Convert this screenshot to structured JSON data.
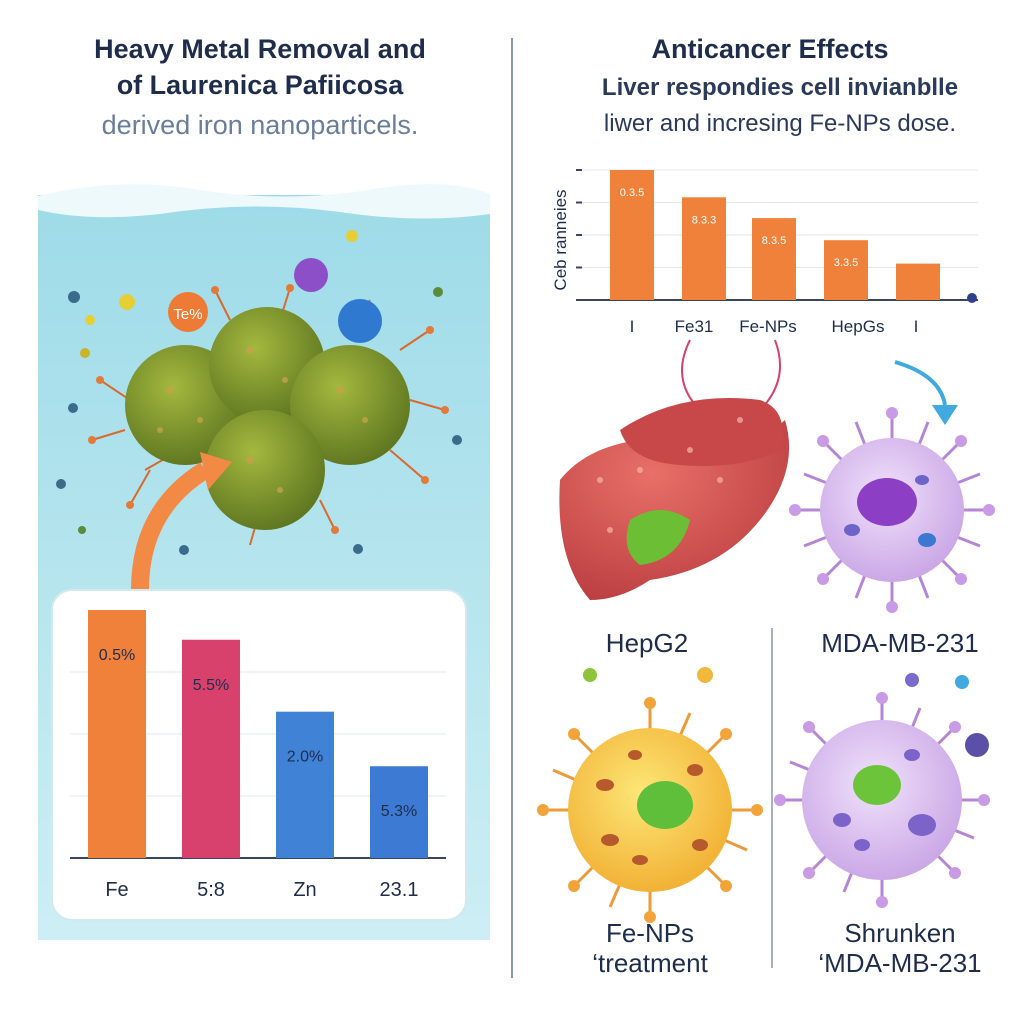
{
  "left_panel": {
    "title_line1": "Heavy Metal Removal and",
    "title_line2": "of Laurenica Pafiicosa",
    "subtitle": "derived iron nanoparticels.",
    "bubble_label": "Te%",
    "chart_data": {
      "type": "bar",
      "categories": [
        "Fe",
        "5:8",
        "Zn",
        "23.1"
      ],
      "values": [
        100,
        88,
        59,
        37
      ],
      "data_labels": [
        "0.5%",
        "5.5%",
        "2.0%",
        "5.3%"
      ],
      "colors": [
        "#f0813a",
        "#d9416d",
        "#3f82d6",
        "#3d7ad4"
      ],
      "xlabel": "",
      "ylabel": "",
      "grid": true
    }
  },
  "right_panel": {
    "title": "Anticancer Effects",
    "subtitle_line1": "Liver respondies cell invianblle",
    "subtitle_line2": "liwer and incresing Fe-NPs dose.",
    "chart_data": {
      "type": "bar",
      "ylabel": "Ceb ranneies",
      "categories": [
        "I",
        "Fe31",
        "Fe-NPs",
        "HepGs",
        "I"
      ],
      "values": [
        100,
        79,
        63,
        46,
        28
      ],
      "data_labels": [
        "0.3.5",
        "8.3.3",
        "8.3.5",
        "3.3.5",
        ""
      ],
      "color": "#f0813a",
      "grid": true
    },
    "cell_labels": {
      "hepg2": "HepG2",
      "mda": "MDA-MB-231",
      "treatment_line1": "Fe-NPs",
      "treatment_line2": "‘treatment",
      "shrunken_line1": "Shrunken",
      "shrunken_line2": "‘MDA-MB-231"
    }
  }
}
